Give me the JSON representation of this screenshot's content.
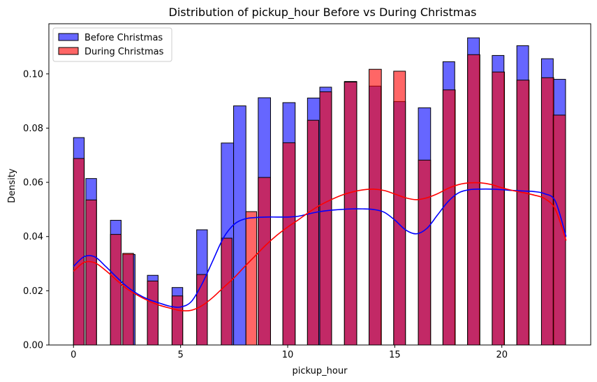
{
  "chart_data": {
    "type": "bar",
    "title": "Distribution of pickup_hour Before vs During Christmas",
    "xlabel": "pickup_hour",
    "ylabel": "Density",
    "xlim": [
      -1.15,
      24.15
    ],
    "ylim": [
      0,
      0.1185
    ],
    "xticks": [
      0,
      5,
      10,
      15,
      20
    ],
    "xtick_labels": [
      "0",
      "5",
      "10",
      "15",
      "20"
    ],
    "yticks": [
      0.0,
      0.02,
      0.04,
      0.06,
      0.08,
      0.1
    ],
    "ytick_labels": [
      "0.00",
      "0.02",
      "0.04",
      "0.06",
      "0.08",
      "0.10"
    ],
    "grid": false,
    "legend_position": "top-left",
    "series": [
      {
        "name": "Before Christmas",
        "color": "#0000ff",
        "alpha": 0.6,
        "bins": [
          [
            0.0,
            0.5,
            0.0765
          ],
          [
            0.575,
            1.075,
            0.0614
          ],
          [
            1.725,
            2.225,
            0.046
          ],
          [
            2.3,
            2.875,
            0.0334
          ],
          [
            3.45,
            3.95,
            0.0257
          ],
          [
            4.6,
            5.1,
            0.0212
          ],
          [
            5.75,
            6.25,
            0.0425
          ],
          [
            6.9,
            7.475,
            0.0745
          ],
          [
            7.475,
            8.05,
            0.0882
          ],
          [
            8.625,
            9.2,
            0.0912
          ],
          [
            9.775,
            10.35,
            0.0894
          ],
          [
            10.925,
            11.5,
            0.0911
          ],
          [
            11.5,
            12.05,
            0.0951
          ],
          [
            12.65,
            13.225,
            0.0972
          ],
          [
            13.8,
            14.35,
            0.0955
          ],
          [
            14.95,
            15.5,
            0.0898
          ],
          [
            16.1,
            16.675,
            0.0875
          ],
          [
            17.25,
            17.8,
            0.1045
          ],
          [
            18.4,
            18.95,
            0.1133
          ],
          [
            19.55,
            20.1,
            0.1068
          ],
          [
            20.7,
            21.25,
            0.1104
          ],
          [
            21.85,
            22.4,
            0.1056
          ],
          [
            22.4,
            22.975,
            0.098
          ]
        ],
        "kde_x": [
          0,
          0.5,
          1,
          1.5,
          2,
          2.5,
          3,
          3.5,
          4,
          4.5,
          5,
          5.5,
          6,
          6.5,
          7,
          7.5,
          8,
          8.5,
          9,
          9.5,
          10,
          10.5,
          11,
          11.5,
          12,
          12.5,
          13,
          13.5,
          14,
          14.5,
          15,
          15.5,
          16,
          16.5,
          17,
          17.5,
          18,
          18.5,
          19,
          19.5,
          20,
          20.5,
          21,
          21.5,
          22,
          22.5,
          23
        ],
        "kde_y": [
          0.029,
          0.0326,
          0.0325,
          0.029,
          0.0251,
          0.0215,
          0.0188,
          0.0168,
          0.0155,
          0.0143,
          0.014,
          0.016,
          0.0225,
          0.031,
          0.0395,
          0.0445,
          0.0465,
          0.047,
          0.0472,
          0.0472,
          0.0472,
          0.0475,
          0.0484,
          0.0492,
          0.0497,
          0.05,
          0.0502,
          0.0502,
          0.05,
          0.049,
          0.0461,
          0.0425,
          0.041,
          0.043,
          0.048,
          0.053,
          0.0562,
          0.0573,
          0.0575,
          0.0575,
          0.0573,
          0.057,
          0.0568,
          0.0566,
          0.0558,
          0.053,
          0.04
        ]
      },
      {
        "name": "During Christmas",
        "color": "#ff0000",
        "alpha": 0.6,
        "bins": [
          [
            0.0,
            0.5,
            0.0688
          ],
          [
            0.575,
            1.075,
            0.0535
          ],
          [
            1.725,
            2.225,
            0.0408
          ],
          [
            2.3,
            2.8,
            0.0338
          ],
          [
            3.45,
            3.95,
            0.0236
          ],
          [
            4.6,
            5.1,
            0.0181
          ],
          [
            5.75,
            6.25,
            0.026
          ],
          [
            6.9,
            7.4,
            0.0394
          ],
          [
            8.05,
            8.55,
            0.0492
          ],
          [
            8.625,
            9.2,
            0.0618
          ],
          [
            9.775,
            10.35,
            0.0746
          ],
          [
            10.925,
            11.45,
            0.0829
          ],
          [
            11.5,
            12.05,
            0.0934
          ],
          [
            12.65,
            13.225,
            0.097
          ],
          [
            13.8,
            14.375,
            0.1017
          ],
          [
            14.95,
            15.5,
            0.101
          ],
          [
            16.1,
            16.675,
            0.0682
          ],
          [
            17.25,
            17.825,
            0.0941
          ],
          [
            18.4,
            18.975,
            0.1071
          ],
          [
            19.55,
            20.125,
            0.1007
          ],
          [
            20.7,
            21.275,
            0.0977
          ],
          [
            21.85,
            22.425,
            0.0986
          ],
          [
            22.4,
            22.975,
            0.0848
          ]
        ],
        "kde_x": [
          0,
          0.5,
          1,
          1.5,
          2,
          2.5,
          3,
          3.5,
          4,
          4.5,
          5,
          5.5,
          6,
          6.5,
          7,
          7.5,
          8,
          8.5,
          9,
          9.5,
          10,
          10.5,
          11,
          11.5,
          12,
          12.5,
          13,
          13.5,
          14,
          14.5,
          15,
          15.5,
          16,
          16.5,
          17,
          17.5,
          18,
          18.5,
          19,
          19.5,
          20,
          20.5,
          21,
          21.5,
          22,
          22.5,
          23
        ],
        "kde_y": [
          0.0272,
          0.0305,
          0.0303,
          0.0275,
          0.024,
          0.0207,
          0.0183,
          0.0163,
          0.0147,
          0.0136,
          0.0127,
          0.0128,
          0.0145,
          0.0175,
          0.0212,
          0.0248,
          0.029,
          0.033,
          0.037,
          0.0405,
          0.0435,
          0.0462,
          0.049,
          0.0515,
          0.0535,
          0.0552,
          0.0564,
          0.0572,
          0.0575,
          0.057,
          0.0557,
          0.0543,
          0.0536,
          0.0543,
          0.0558,
          0.0578,
          0.0592,
          0.0598,
          0.0598,
          0.0592,
          0.058,
          0.057,
          0.0562,
          0.0553,
          0.054,
          0.05,
          0.0385
        ]
      }
    ]
  }
}
